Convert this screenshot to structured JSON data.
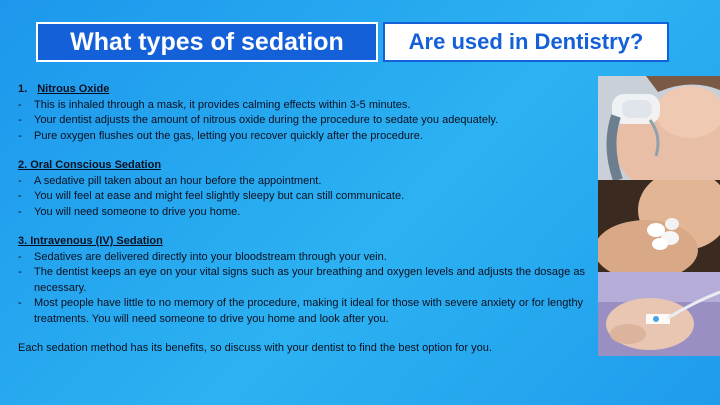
{
  "title": {
    "left": "What types of sedation",
    "right": "Are used in Dentistry?"
  },
  "sections": [
    {
      "number": "1.",
      "heading": "Nitrous Oxide",
      "bullets": [
        "This is inhaled through a mask, it provides calming effects within 3-5 minutes.",
        "Your dentist adjusts the amount of nitrous oxide during the procedure to sedate you adequately.",
        "Pure oxygen flushes out the gas, letting you recover quickly after the procedure."
      ]
    },
    {
      "heading": "2. Oral Conscious Sedation",
      "bullets": [
        " A sedative pill taken about an hour before the appointment.",
        "You will feel at ease and might feel slightly sleepy but can still communicate.",
        "You will need someone to drive you home."
      ]
    },
    {
      "heading": "3. Intravenous (IV) Sedation",
      "bullets": [
        " Sedatives are delivered directly into your bloodstream through your vein.",
        "The dentist keeps an eye on your vital signs such as your breathing and oxygen levels and adjusts the dosage as necessary.",
        "Most people have little to no memory of the procedure, making it ideal for those with severe anxiety or for lengthy treatments. You will need someone to drive you home and look after you."
      ]
    }
  ],
  "closing": "Each sedation method has its benefits, so discuss with your dentist to find the best option for you.",
  "images": [
    "nitrous-oxide-mask-photo",
    "sedative-pills-photo",
    "iv-drip-hand-photo"
  ],
  "colors": {
    "background": "#22a6ef",
    "title_blue": "#1460d8",
    "white": "#ffffff",
    "text": "#0b1020"
  }
}
